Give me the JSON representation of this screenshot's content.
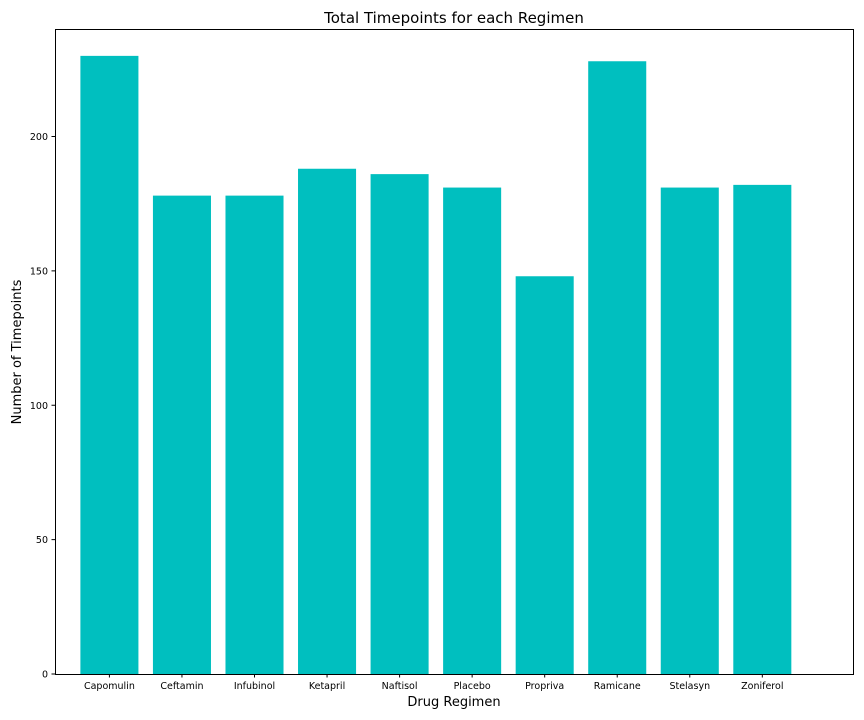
{
  "chart_data": {
    "type": "bar",
    "title": "Total Timepoints for each Regimen",
    "xlabel": "Drug Regimen",
    "ylabel": "Number of Timepoints",
    "categories": [
      "Capomulin",
      "Ceftamin",
      "Infubinol",
      "Ketapril",
      "Naftisol",
      "Placebo",
      "Propriva",
      "Ramicane",
      "Stelasyn",
      "Zoniferol"
    ],
    "values": [
      230,
      178,
      178,
      188,
      186,
      181,
      148,
      228,
      181,
      182
    ],
    "ylim": [
      0,
      240
    ],
    "yticks": [
      0,
      50,
      100,
      150,
      200
    ],
    "bar_color": "#00bfbf",
    "grid": false,
    "legend": "none"
  }
}
